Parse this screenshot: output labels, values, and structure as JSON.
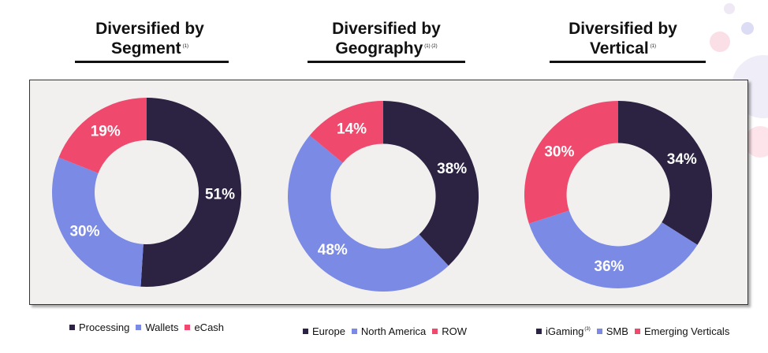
{
  "colors": {
    "dark": "#2c2241",
    "blue": "#7b8ae5",
    "pink": "#ef4a6d"
  },
  "charts": [
    {
      "title_line1": "Diversified by",
      "title_line2": "Segment",
      "title_note": "(1)",
      "legend": [
        {
          "label": "Processing",
          "note": ""
        },
        {
          "label": "Wallets",
          "note": ""
        },
        {
          "label": "eCash",
          "note": ""
        }
      ]
    },
    {
      "title_line1": "Diversified by",
      "title_line2": "Geography",
      "title_note": "(1) (2)",
      "legend": [
        {
          "label": "Europe",
          "note": ""
        },
        {
          "label": "North America",
          "note": ""
        },
        {
          "label": "ROW",
          "note": ""
        }
      ]
    },
    {
      "title_line1": "Diversified by",
      "title_line2": "Vertical",
      "title_note": "(1)",
      "legend": [
        {
          "label": "iGaming",
          "note": "(3)"
        },
        {
          "label": "SMB",
          "note": ""
        },
        {
          "label": "Emerging Verticals",
          "note": ""
        }
      ]
    }
  ],
  "chart_data": [
    {
      "type": "pie",
      "title": "Diversified by Segment",
      "categories": [
        "Processing",
        "Wallets",
        "eCash"
      ],
      "values": [
        51,
        30,
        19
      ],
      "labels": [
        "51%",
        "30%",
        "19%"
      ],
      "colors": [
        "#2c2241",
        "#7b8ae5",
        "#ef4a6d"
      ],
      "donut": true
    },
    {
      "type": "pie",
      "title": "Diversified by Geography",
      "categories": [
        "Europe",
        "North America",
        "ROW"
      ],
      "values": [
        38,
        48,
        14
      ],
      "labels": [
        "38%",
        "48%",
        "14%"
      ],
      "colors": [
        "#2c2241",
        "#7b8ae5",
        "#ef4a6d"
      ],
      "donut": true
    },
    {
      "type": "pie",
      "title": "Diversified by Vertical",
      "categories": [
        "iGaming",
        "SMB",
        "Emerging Verticals"
      ],
      "values": [
        34,
        36,
        30
      ],
      "labels": [
        "34%",
        "36%",
        "30%"
      ],
      "colors": [
        "#2c2241",
        "#7b8ae5",
        "#ef4a6d"
      ],
      "donut": true
    }
  ]
}
